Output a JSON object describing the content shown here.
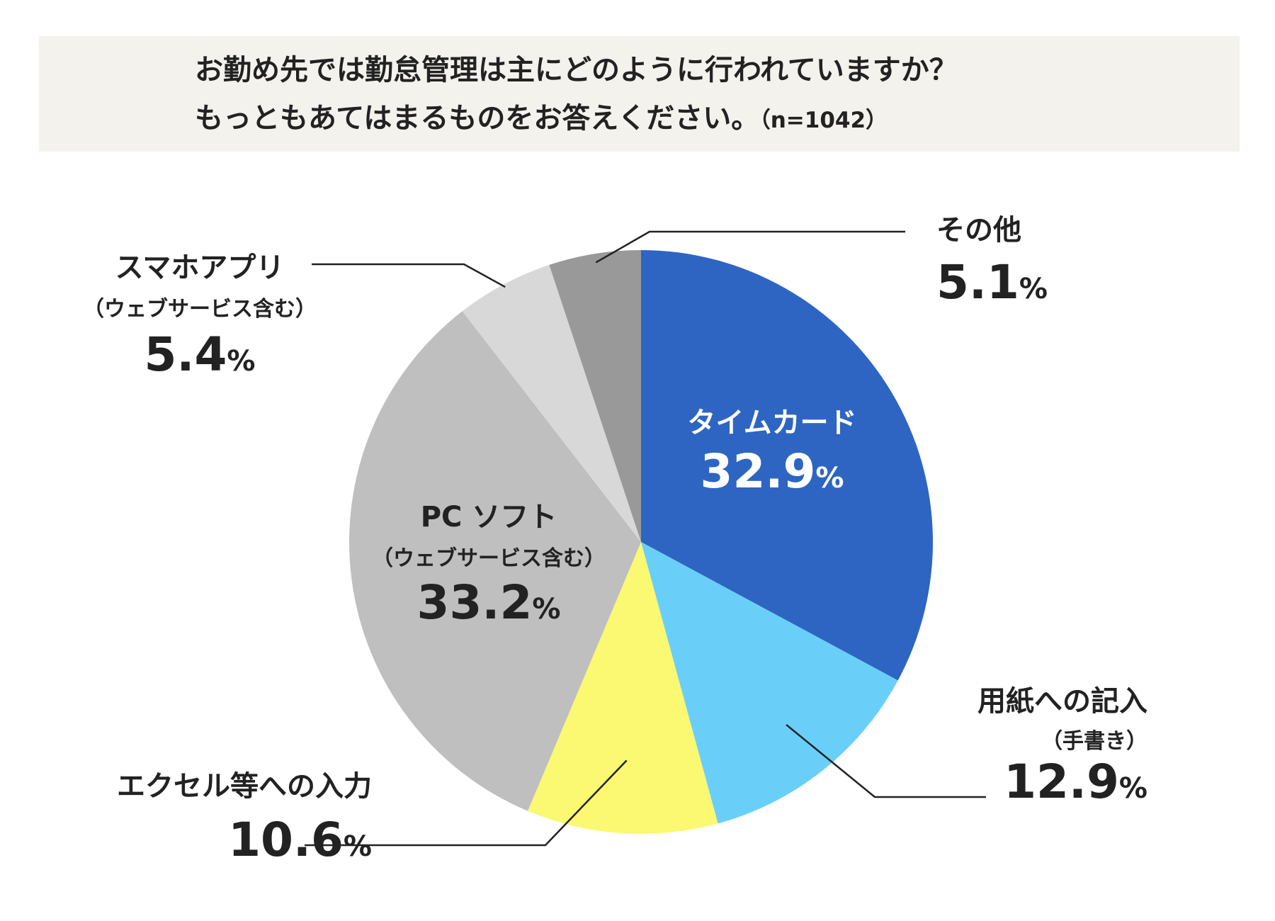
{
  "title": {
    "line1": "お勤め先では勤怠管理は主にどのように行われていますか？",
    "line2": "もっともあてはまるものをお答えください。",
    "n_label": "（n=1042）"
  },
  "chart_data": {
    "type": "pie",
    "start": "12 o'clock",
    "direction": "clockwise",
    "slices": [
      {
        "name": "タイムカード",
        "sub": "",
        "value": 32.9,
        "value_text": "32.9",
        "unit": "%",
        "color": "#2e65c2",
        "label_color": "#ffffff"
      },
      {
        "name": "用紙への記入",
        "sub": "（手書き）",
        "value": 12.9,
        "value_text": "12.9",
        "unit": "%",
        "color": "#69cff9",
        "label_color": "#222222"
      },
      {
        "name": "エクセル等への入力",
        "sub": "",
        "value": 10.6,
        "value_text": "10.6",
        "unit": "%",
        "color": "#fbf872",
        "label_color": "#222222"
      },
      {
        "name": "PC ソフト",
        "sub": "（ウェブサービス含む）",
        "value": 33.2,
        "value_text": "33.2",
        "unit": "%",
        "color": "#bfbfbf",
        "label_color": "#222222"
      },
      {
        "name": "スマホアプリ",
        "sub": "（ウェブサービス含む）",
        "value": 5.4,
        "value_text": "5.4",
        "unit": "%",
        "color": "#d8d8d8",
        "label_color": "#222222"
      },
      {
        "name": "その他",
        "sub": "",
        "value": 5.1,
        "value_text": "5.1",
        "unit": "%",
        "color": "#999999",
        "label_color": "#222222"
      }
    ]
  }
}
